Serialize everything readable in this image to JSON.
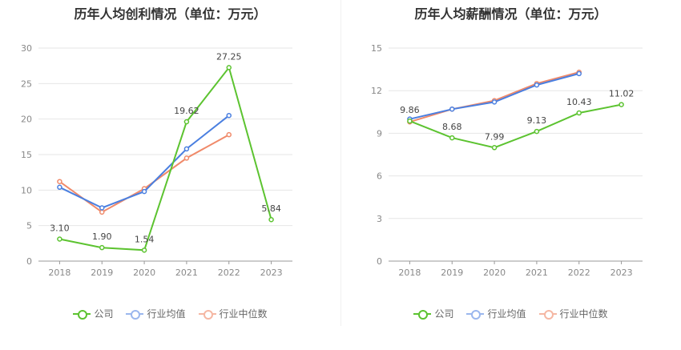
{
  "chart_data": [
    {
      "type": "line",
      "title": "历年人均创利情况（单位：万元）",
      "categories": [
        "2018",
        "2019",
        "2020",
        "2021",
        "2022",
        "2023"
      ],
      "ylim": [
        0,
        30
      ],
      "yticks": [
        0,
        5,
        10,
        15,
        20,
        25,
        30
      ],
      "grid": true,
      "legend_position": "bottom",
      "series": [
        {
          "name": "公司",
          "color": "#5cc330",
          "values": [
            3.1,
            1.9,
            1.54,
            19.62,
            27.25,
            5.84
          ],
          "labels": [
            "3.10",
            "1.90",
            "1.54",
            "19.62",
            "27.25",
            "5.84"
          ]
        },
        {
          "name": "行业均值",
          "color": "#4a7fe0",
          "values": [
            10.4,
            7.5,
            9.8,
            15.8,
            20.5,
            null
          ]
        },
        {
          "name": "行业中位数",
          "color": "#f08a6a",
          "values": [
            11.2,
            6.9,
            10.2,
            14.5,
            17.8,
            null
          ]
        }
      ]
    },
    {
      "type": "line",
      "title": "历年人均薪酬情况（单位：万元）",
      "categories": [
        "2018",
        "2019",
        "2020",
        "2021",
        "2022",
        "2023"
      ],
      "ylim": [
        0,
        15
      ],
      "yticks": [
        0,
        3,
        6,
        9,
        12,
        15
      ],
      "grid": true,
      "legend_position": "bottom",
      "series": [
        {
          "name": "公司",
          "color": "#5cc330",
          "values": [
            9.86,
            8.68,
            7.99,
            9.13,
            10.43,
            11.02
          ],
          "labels": [
            "9.86",
            "8.68",
            "7.99",
            "9.13",
            "10.43",
            "11.02"
          ]
        },
        {
          "name": "行业均值",
          "color": "#4a7fe0",
          "values": [
            10.0,
            10.7,
            11.2,
            12.4,
            13.2,
            null
          ]
        },
        {
          "name": "行业中位数",
          "color": "#f08a6a",
          "values": [
            9.8,
            10.7,
            11.3,
            12.5,
            13.3,
            null
          ]
        }
      ]
    }
  ]
}
